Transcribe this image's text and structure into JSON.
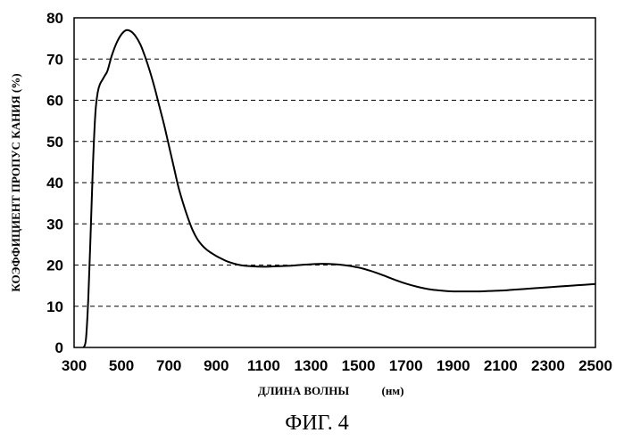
{
  "chart_data": {
    "type": "line",
    "xlabel": "ДЛИНА ВОЛНЫ",
    "xunit": "(нм)",
    "ylabel": "КОЭФФИЦИЕНТ ПРОПУС КАНИЯ (%)",
    "xlim": [
      300,
      2500
    ],
    "ylim": [
      0,
      80
    ],
    "x_ticks": [
      300,
      500,
      700,
      900,
      1100,
      1300,
      1500,
      1700,
      1900,
      2100,
      2300,
      2500
    ],
    "y_ticks": [
      0,
      10,
      20,
      30,
      40,
      50,
      60,
      70,
      80
    ],
    "grid": "horizontal dashed",
    "series": [
      {
        "x": [
          340,
          350,
          360,
          370,
          380,
          390,
          400,
          410,
          420,
          430,
          440,
          450,
          460,
          480,
          500,
          520,
          540,
          560,
          580,
          600,
          620,
          640,
          660,
          680,
          700,
          720,
          740,
          760,
          780,
          800,
          820,
          840,
          860,
          880,
          900,
          920,
          950,
          1000,
          1050,
          1100,
          1150,
          1200,
          1250,
          1300,
          1350,
          1400,
          1450,
          1500,
          1550,
          1600,
          1650,
          1700,
          1750,
          1800,
          1850,
          1900,
          1950,
          2000,
          2050,
          2100,
          2150,
          2200,
          2250,
          2300,
          2350,
          2400,
          2450,
          2500
        ],
        "y": [
          0,
          2,
          12,
          28,
          45,
          57,
          62,
          64,
          65,
          66,
          67,
          69,
          71,
          74,
          76,
          77,
          76.7,
          75.5,
          73.5,
          70.5,
          67,
          63,
          58.5,
          54,
          49,
          44,
          39,
          35,
          31.5,
          28.5,
          26.3,
          24.8,
          23.7,
          22.9,
          22.2,
          21.6,
          20.8,
          20,
          19.7,
          19.6,
          19.7,
          19.8,
          20,
          20.2,
          20.3,
          20.2,
          19.9,
          19.4,
          18.6,
          17.6,
          16.5,
          15.5,
          14.7,
          14.1,
          13.8,
          13.6,
          13.6,
          13.6,
          13.7,
          13.8,
          14,
          14.2,
          14.4,
          14.6,
          14.8,
          15,
          15.2,
          15.4
        ]
      }
    ]
  },
  "caption": "ФИГ. 4"
}
